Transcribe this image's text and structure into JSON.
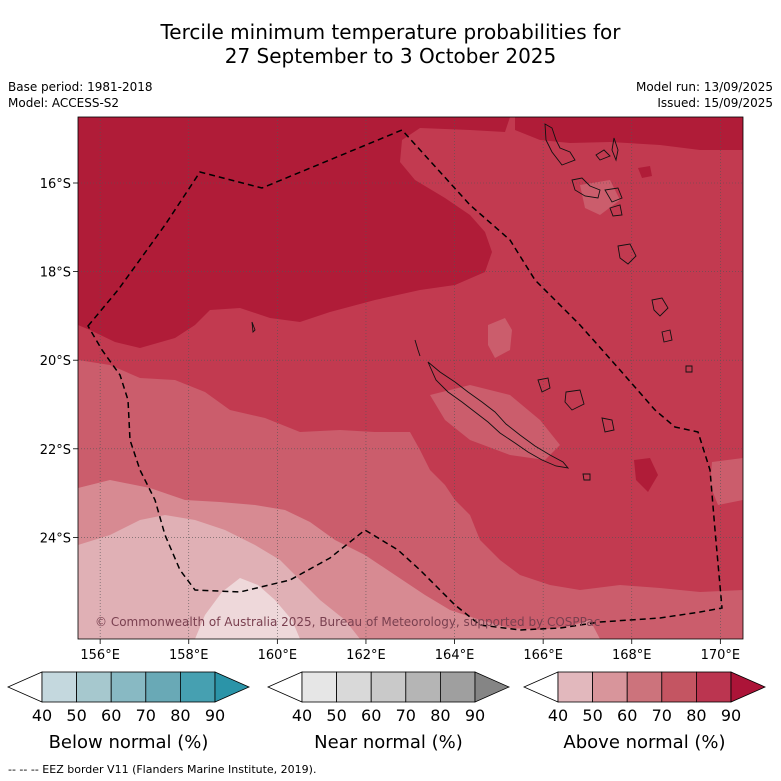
{
  "title": {
    "line1": "Tercile minimum temperature probabilities for",
    "line2": "27 September to 3 October 2025"
  },
  "meta_left": {
    "base_period": "Base period: 1981-2018",
    "model": "Model: ACCESS-S2"
  },
  "meta_right": {
    "model_run": "Model run: 13/09/2025",
    "issued": "Issued: 15/09/2025"
  },
  "map": {
    "lon_ticks": [
      "156°E",
      "158°E",
      "160°E",
      "162°E",
      "164°E",
      "166°E",
      "168°E",
      "170°E"
    ],
    "lat_ticks": [
      "16°S",
      "18°S",
      "20°S",
      "22°S",
      "24°S"
    ],
    "copyright": "© Commonwealth of Australia 2025, Bureau of Meteorology, supported by COSPPac",
    "colors": {
      "above_90": "#b01c38",
      "above_80": "#c23a50",
      "above_70": "#cb5d6c",
      "above_60": "#d78a92",
      "above_50": "#e0b0b5",
      "above_40": "#eed8da"
    }
  },
  "colorbars": [
    {
      "title": "Below normal (%)",
      "labels": [
        "40",
        "50",
        "60",
        "70",
        "80",
        "90"
      ],
      "colors": [
        "#c4d8de",
        "#a6c8ce",
        "#88b9c3",
        "#69a9b6",
        "#46a0b1",
        "#2b94a8"
      ]
    },
    {
      "title": "Near normal (%)",
      "labels": [
        "40",
        "50",
        "60",
        "70",
        "80",
        "90"
      ],
      "colors": [
        "#e6e6e6",
        "#d9d9d9",
        "#c9c9c9",
        "#b5b5b5",
        "#9f9f9f",
        "#858585"
      ]
    },
    {
      "title": "Above normal (%)",
      "labels": [
        "40",
        "50",
        "60",
        "70",
        "80",
        "90"
      ],
      "colors": [
        "#e2b8bd",
        "#d8959b",
        "#cc737c",
        "#c45562",
        "#bb3550",
        "#ac1438"
      ]
    }
  ],
  "footer": "--  --  -- EEZ border V11 (Flanders Marine Institute, 2019)."
}
